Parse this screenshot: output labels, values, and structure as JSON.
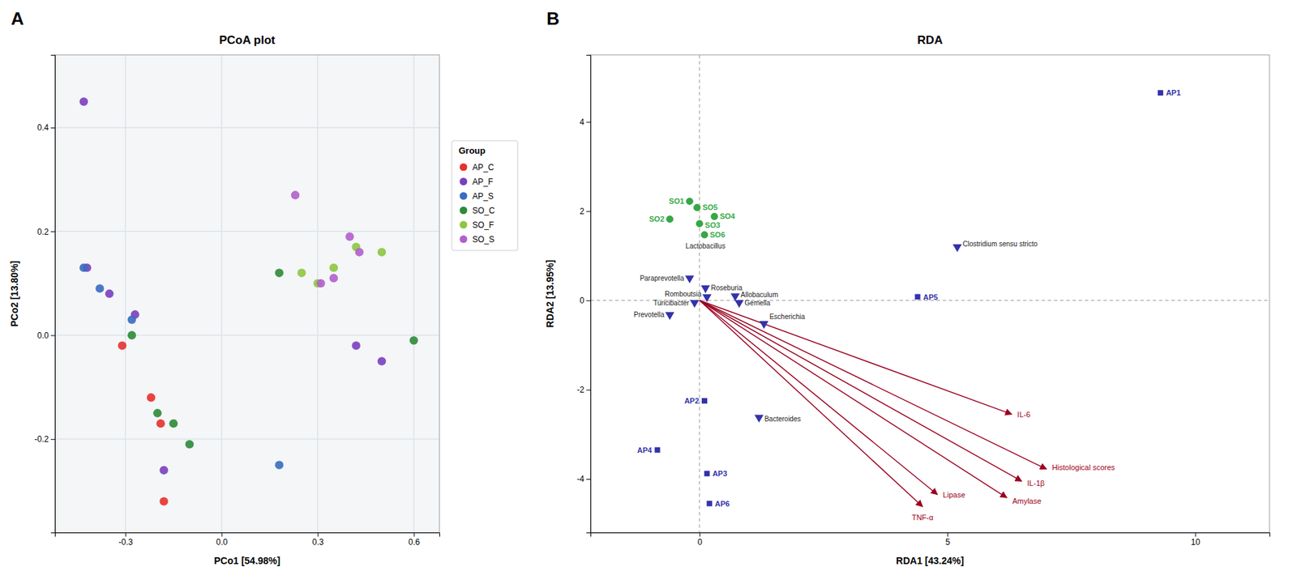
{
  "chart_data": [
    {
      "type": "scatter",
      "title": "PCoA plot",
      "xlabel": "PCo1 [54.98%]",
      "ylabel": "PCo2 [13.80%]",
      "xlim": [
        -0.52,
        0.68
      ],
      "ylim": [
        -0.38,
        0.54
      ],
      "xticks": [
        -0.3,
        {
          "value": 0,
          "label": "0.0"
        },
        0.3,
        0.6
      ],
      "yticks": [
        -0.2,
        {
          "value": 0,
          "label": "0.0"
        },
        0.2,
        0.4
      ],
      "grid": true,
      "legend": "right",
      "legend_title": "Group",
      "annotations": [
        {
          "text": "A"
        }
      ],
      "series": [
        {
          "name": "AP_C",
          "color": "#e8312a",
          "marker": "circle",
          "x": [
            -0.31,
            -0.22,
            -0.19,
            -0.18
          ],
          "values": [
            -0.02,
            -0.12,
            -0.17,
            -0.32
          ]
        },
        {
          "name": "AP_F",
          "color": "#7b3fbe",
          "marker": "circle",
          "x": [
            -0.43,
            -0.42,
            -0.35,
            -0.27,
            -0.18,
            0.42,
            0.5
          ],
          "values": [
            0.45,
            0.13,
            0.08,
            0.04,
            -0.26,
            -0.02,
            -0.05
          ]
        },
        {
          "name": "AP_S",
          "color": "#3a6bbf",
          "marker": "circle",
          "x": [
            -0.43,
            -0.38,
            -0.28,
            0.18
          ],
          "values": [
            0.13,
            0.09,
            0.03,
            -0.25
          ]
        },
        {
          "name": "SO_C",
          "color": "#2e8b37",
          "marker": "circle",
          "x": [
            -0.28,
            -0.2,
            -0.15,
            -0.1,
            0.18,
            0.6
          ],
          "values": [
            0.0,
            -0.15,
            -0.17,
            -0.21,
            0.12,
            -0.01
          ]
        },
        {
          "name": "SO_F",
          "color": "#8dc63f",
          "marker": "circle",
          "x": [
            0.25,
            0.3,
            0.35,
            0.42,
            0.5
          ],
          "values": [
            0.12,
            0.1,
            0.13,
            0.17,
            0.16
          ]
        },
        {
          "name": "SO_S",
          "color": "#b35fcc",
          "marker": "circle",
          "x": [
            0.23,
            0.31,
            0.35,
            0.4,
            0.43
          ],
          "values": [
            0.27,
            0.1,
            0.11,
            0.19,
            0.16
          ]
        }
      ]
    },
    {
      "type": "biplot",
      "title": "RDA",
      "xlabel": "RDA1 [43.24%]",
      "ylabel": "RDA2 [13.95%]",
      "xlim": [
        -2.2,
        11.5
      ],
      "ylim": [
        -5.2,
        5.5
      ],
      "xticks": [
        0,
        5,
        10
      ],
      "yticks": [
        -4,
        -2,
        0,
        2,
        4
      ],
      "grid": false,
      "reference_lines": {
        "x": [
          0
        ],
        "y": [
          0
        ]
      },
      "annotations": [
        {
          "text": "B"
        },
        {
          "text": "Lactobacillus",
          "x": -0.28,
          "y": 1.28
        }
      ],
      "series": [
        {
          "type": "arrow",
          "color": "#9b0020",
          "labels": [
            "IL-6",
            "Histological scores",
            "IL-1β",
            "Lipase",
            "Amylase",
            "TNF-α"
          ],
          "x": [
            6.3,
            7.0,
            6.5,
            4.8,
            6.2,
            4.5
          ],
          "values": [
            -2.55,
            -3.78,
            -4.05,
            -4.35,
            -4.42,
            -4.62
          ]
        },
        {
          "type": "scatter",
          "color": "#3333aa",
          "marker": "square",
          "labels": [
            "AP1",
            "AP2",
            "AP3",
            "AP4",
            "AP5",
            "AP6"
          ],
          "x": [
            9.3,
            0.1,
            0.15,
            -0.85,
            4.4,
            0.2
          ],
          "values": [
            4.65,
            -2.25,
            -3.88,
            -3.35,
            0.08,
            -4.55
          ]
        },
        {
          "type": "scatter",
          "color": "#33aa44",
          "marker": "circle",
          "labels": [
            "SO1",
            "SO2",
            "SO3",
            "SO4",
            "SO5",
            "SO6"
          ],
          "x": [
            -0.2,
            -0.6,
            0.0,
            0.3,
            -0.05,
            0.1
          ],
          "values": [
            2.22,
            1.82,
            1.72,
            1.88,
            2.08,
            1.47
          ]
        },
        {
          "type": "scatter",
          "color": "#3333aa",
          "marker": "triangle-down",
          "labels": [
            "Clostridium sensu stricto",
            "Bacteroides",
            "Paraprevotella",
            "Romboutsia",
            "Turicibacter",
            "Prevotella",
            "Roseburia",
            "Allobaculum",
            "Gemella",
            "Escherichia"
          ],
          "x": [
            5.2,
            1.2,
            -0.2,
            0.15,
            -0.1,
            -0.6,
            0.12,
            0.72,
            0.8,
            1.3
          ],
          "values": [
            1.2,
            -2.62,
            0.5,
            0.08,
            -0.05,
            -0.32,
            0.28,
            0.1,
            -0.05,
            -0.52
          ]
        }
      ]
    }
  ]
}
